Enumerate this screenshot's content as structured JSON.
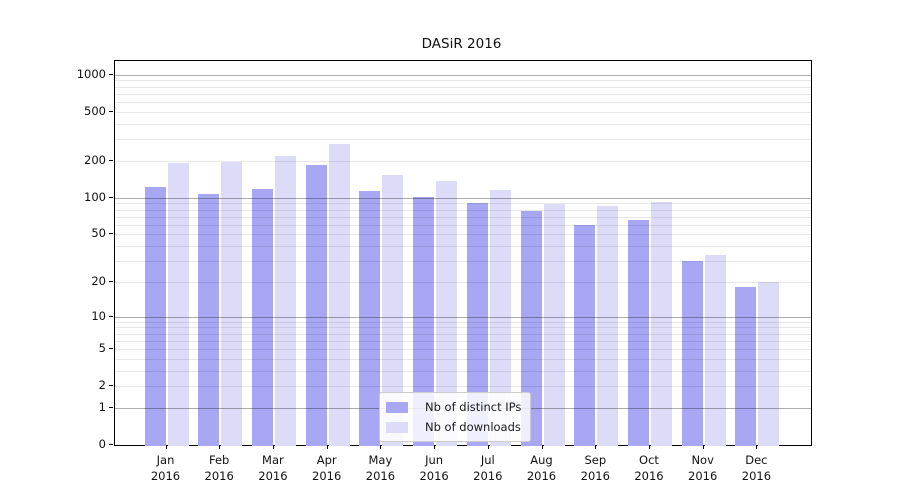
{
  "title": "DASiR 2016",
  "colors": {
    "distinct_ips": "#a7a7f3",
    "downloads": "#dcdcf9",
    "grid_major": "rgba(0,0,0,0.32)",
    "grid_minor": "rgba(0,0,0,0.09)"
  },
  "legend": {
    "position": "lower center",
    "items": [
      {
        "label": "Nb of distinct IPs",
        "color": "#a7a7f3"
      },
      {
        "label": "Nb of downloads",
        "color": "#dcdcf9"
      }
    ]
  },
  "chart_data": {
    "type": "bar",
    "title": "DASiR 2016",
    "categories": [
      "Jan 2016",
      "Feb 2016",
      "Mar 2016",
      "Apr 2016",
      "May 2016",
      "Jun 2016",
      "Jul 2016",
      "Aug 2016",
      "Sep 2016",
      "Oct 2016",
      "Nov 2016",
      "Dec 2016"
    ],
    "series": [
      {
        "name": "Nb of distinct IPs",
        "color": "#a7a7f3",
        "values": [
          122,
          107,
          118,
          185,
          113,
          102,
          90,
          78,
          60,
          66,
          30,
          18
        ]
      },
      {
        "name": "Nb of downloads",
        "color": "#dcdcf9",
        "values": [
          192,
          196,
          218,
          275,
          153,
          137,
          115,
          89,
          85,
          92,
          34,
          20
        ]
      }
    ],
    "xlabel": "",
    "ylabel": "",
    "yscale": "log(1+y)",
    "y_ticks": [
      0,
      1,
      2,
      5,
      10,
      20,
      50,
      100,
      200,
      500,
      1000
    ],
    "ylim": [
      0,
      1280
    ],
    "grid": true,
    "legend_position": "lower center"
  }
}
